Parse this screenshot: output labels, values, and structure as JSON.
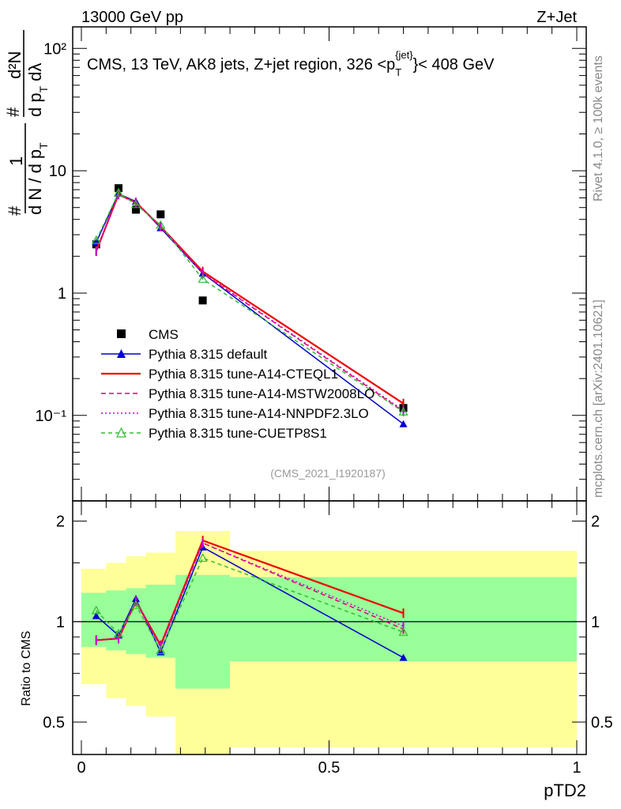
{
  "header": {
    "left": "13000 GeV pp",
    "right": "Z+Jet"
  },
  "side_labels": {
    "rivet": "Rivet 4.1.0, ≥ 100k events",
    "mcplots": "mcplots.cern.ch [arXiv:2401.10621]"
  },
  "watermark": "(CMS_2021_I1920187)",
  "title": {
    "main": "CMS, 13 TeV, AK8 jets, Z+jet region, 326 <p",
    "sub": "T",
    "sup": "{jet}",
    "end": "}< 408 GeV"
  },
  "ylabel_top": {
    "hash1": "#",
    "one": "1",
    "dN": "d N / d p",
    "T1": "T",
    "hash2": "#",
    "d2N": "d²N",
    "dpT": "d p",
    "T2": "T",
    "dlambda": "dλ"
  },
  "ylabel_bottom": "Ratio to CMS",
  "xlabel": "pTD2",
  "ticks_top": {
    "y": [
      {
        "v": 0.1,
        "label": "10⁻¹"
      },
      {
        "v": 1,
        "label": "1"
      },
      {
        "v": 10,
        "label": "10"
      },
      {
        "v": 100,
        "label": "10²"
      }
    ]
  },
  "ticks_bottom": {
    "y": [
      {
        "v": 0.5,
        "label": "0.5"
      },
      {
        "v": 1,
        "label": "1"
      },
      {
        "v": 2,
        "label": "2"
      }
    ],
    "x": [
      {
        "v": 0,
        "label": "0"
      },
      {
        "v": 0.5,
        "label": "0.5"
      },
      {
        "v": 1,
        "label": "1"
      }
    ]
  },
  "chart_data": {
    "type": "line",
    "title": "CMS, 13 TeV, AK8 jets, Z+jet region, 326 < pT(jet) < 408 GeV",
    "xlabel": "pTD2",
    "ylabel": "1/N dN/dλ",
    "xlim": [
      0,
      1
    ],
    "ylim_top": [
      0.02,
      150
    ],
    "ylim_ratio": [
      0.4,
      2.3
    ],
    "yscale": "log",
    "x": [
      0.03,
      0.075,
      0.11,
      0.16,
      0.245,
      0.65
    ],
    "series": [
      {
        "name": "CMS",
        "color": "#000000",
        "values": [
          2.5,
          7.2,
          4.8,
          4.4,
          0.87,
          0.115
        ],
        "ratio": [
          1.0,
          1.0,
          1.0,
          1.0,
          1.0,
          1.0
        ]
      },
      {
        "name": "Pythia 8.315 default",
        "color": "#0000cc",
        "values": [
          2.6,
          6.5,
          5.6,
          3.4,
          1.45,
          0.085
        ],
        "ratio": [
          1.04,
          0.91,
          1.17,
          0.81,
          1.67,
          0.78
        ]
      },
      {
        "name": "Pythia 8.315 tune-A14-CTEQL1",
        "color": "#ee0000",
        "values": [
          2.2,
          6.4,
          5.5,
          3.5,
          1.5,
          0.125
        ],
        "ratio": [
          0.88,
          0.89,
          1.15,
          0.85,
          1.75,
          1.06
        ]
      },
      {
        "name": "Pythia 8.315 tune-A14-MSTW2008LO",
        "color": "#e0006e",
        "values": [
          2.2,
          6.4,
          5.5,
          3.5,
          1.45,
          0.108
        ],
        "ratio": [
          0.88,
          0.89,
          1.15,
          0.84,
          1.72,
          0.95
        ]
      },
      {
        "name": "Pythia 8.315 tune-A14-NNPDF2.3LO",
        "color": "#cc00cc",
        "values": [
          2.2,
          6.4,
          5.5,
          3.5,
          1.46,
          0.11
        ],
        "ratio": [
          0.88,
          0.89,
          1.15,
          0.84,
          1.72,
          0.97
        ]
      },
      {
        "name": "Pythia 8.315 tune-CUETP8S1",
        "color": "#33bb33",
        "values": [
          2.7,
          6.6,
          5.3,
          3.6,
          1.3,
          0.107
        ],
        "ratio": [
          1.08,
          0.92,
          1.12,
          0.82,
          1.55,
          0.93
        ]
      }
    ],
    "bands_ratio": {
      "bins": [
        [
          0,
          0.05
        ],
        [
          0.05,
          0.09
        ],
        [
          0.09,
          0.13
        ],
        [
          0.13,
          0.19
        ],
        [
          0.19,
          0.3
        ],
        [
          0.3,
          1.0
        ]
      ],
      "green_low": [
        0.84,
        0.82,
        0.8,
        0.78,
        0.63,
        0.76
      ],
      "green_high": [
        1.22,
        1.24,
        1.26,
        1.29,
        1.38,
        1.36
      ],
      "yellow_low": [
        0.65,
        0.59,
        0.56,
        0.52,
        0.4,
        0.42
      ],
      "yellow_high": [
        1.44,
        1.5,
        1.57,
        1.61,
        1.87,
        1.63
      ]
    }
  }
}
